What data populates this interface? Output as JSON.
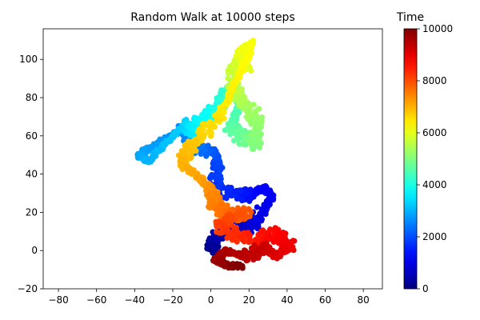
{
  "chart_data": {
    "type": "scatter",
    "title": "Random Walk at 10000 steps",
    "xlabel": "",
    "ylabel": "",
    "xlim": [
      -88,
      90
    ],
    "ylim": [
      -20,
      116
    ],
    "x_ticks": [
      -80,
      -60,
      -40,
      -20,
      0,
      20,
      40,
      60,
      80
    ],
    "y_ticks": [
      -20,
      0,
      20,
      40,
      60,
      80,
      100
    ],
    "grid": false,
    "colormap": "jet",
    "color_by": "step index",
    "steps": 10000,
    "walk_path": {
      "t": [
        0,
        300,
        600,
        800,
        1000,
        1100,
        1200,
        1300,
        1500,
        1700,
        1900,
        2050,
        2200,
        2400,
        2600,
        2750,
        2850,
        3000,
        3150,
        3300,
        3500,
        3700,
        3900,
        4100,
        4300,
        4450,
        4600,
        4800,
        5000,
        5200,
        5400,
        5600,
        5800,
        5950,
        6050,
        6150,
        6300,
        6450,
        6650,
        6800,
        7000,
        7150,
        7300,
        7500,
        7700,
        7900,
        8100,
        8300,
        8500,
        8700,
        8900,
        9050,
        9200,
        9400,
        9550,
        9700,
        9850,
        10000
      ],
      "x": [
        0,
        2,
        8,
        22,
        27,
        32,
        28,
        20,
        14,
        2,
        4,
        2,
        -3,
        -8,
        -15,
        -28,
        -38,
        -33,
        -22,
        -12,
        -10,
        -5,
        3,
        6,
        12,
        15,
        10,
        19,
        23,
        24,
        16,
        11,
        13,
        20,
        14,
        22,
        16,
        6,
        -4,
        -10,
        -15,
        -6,
        0,
        2,
        10,
        18,
        5,
        12,
        25,
        33,
        42,
        34,
        28,
        18,
        8,
        2,
        10,
        16
      ],
      "y": [
        0,
        5,
        12,
        12,
        20,
        28,
        33,
        29,
        29,
        32,
        45,
        52,
        52,
        55,
        63,
        56,
        50,
        47,
        58,
        67,
        62,
        68,
        73,
        79,
        85,
        76,
        64,
        58,
        56,
        69,
        78,
        86,
        98,
        95,
        103,
        109,
        94,
        73,
        60,
        55,
        45,
        38,
        32,
        24,
        18,
        20,
        13,
        8,
        6,
        9,
        2,
        -3,
        2,
        -3,
        0,
        -5,
        -8,
        -8
      ]
    },
    "colorbar": {
      "label": "Time",
      "min": 0,
      "max": 10000,
      "ticks": [
        0,
        2000,
        4000,
        6000,
        8000,
        10000
      ]
    }
  }
}
